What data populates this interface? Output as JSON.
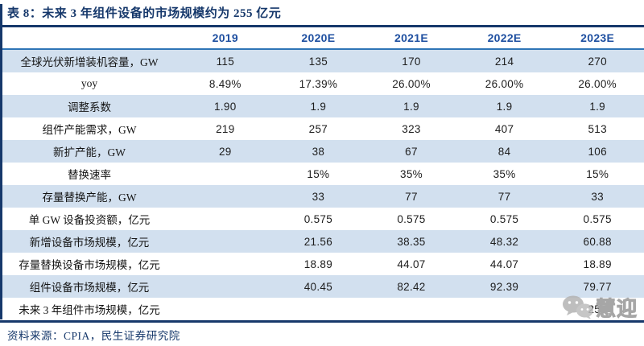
{
  "title": "表 8：未来 3 年组件设备的市场规模约为 255 亿元",
  "table": {
    "year_columns": [
      "2019",
      "2020E",
      "2021E",
      "2022E",
      "2023E"
    ],
    "rows": [
      {
        "label": "全球光伏新增装机容量，GW",
        "values": [
          "115",
          "135",
          "170",
          "214",
          "270"
        ]
      },
      {
        "label": "yoy",
        "values": [
          "8.49%",
          "17.39%",
          "26.00%",
          "26.00%",
          "26.00%"
        ]
      },
      {
        "label": "调整系数",
        "values": [
          "1.90",
          "1.9",
          "1.9",
          "1.9",
          "1.9"
        ]
      },
      {
        "label": "组件产能需求，GW",
        "values": [
          "219",
          "257",
          "323",
          "407",
          "513"
        ]
      },
      {
        "label": "新扩产能，GW",
        "values": [
          "29",
          "38",
          "67",
          "84",
          "106"
        ]
      },
      {
        "label": "替换速率",
        "values": [
          "",
          "15%",
          "35%",
          "35%",
          "15%"
        ]
      },
      {
        "label": "存量替换产能，GW",
        "values": [
          "",
          "33",
          "77",
          "77",
          "33"
        ]
      },
      {
        "label": "单 GW 设备投资额，亿元",
        "values": [
          "",
          "0.575",
          "0.575",
          "0.575",
          "0.575"
        ]
      },
      {
        "label": "新增设备市场规模，亿元",
        "values": [
          "",
          "21.56",
          "38.35",
          "48.32",
          "60.88"
        ]
      },
      {
        "label": "存量替换设备市场规模，亿元",
        "values": [
          "",
          "18.89",
          "44.07",
          "44.07",
          "18.89"
        ]
      },
      {
        "label": "组件设备市场规模，亿元",
        "values": [
          "",
          "40.45",
          "82.42",
          "92.39",
          "79.77"
        ]
      },
      {
        "label": "未来 3 年组件市场规模，亿元",
        "values": [
          "",
          "",
          "",
          "",
          "255"
        ]
      }
    ]
  },
  "source": "资料来源：CPIA，民生证券研究院",
  "watermark": {
    "icon": "wechat-icon",
    "text": "慧迎"
  },
  "colors": {
    "navy": "#16386B",
    "header_blue": "#1E4FA0",
    "rule_blue": "#2E75B6",
    "stripe": "#D2E0EF"
  }
}
